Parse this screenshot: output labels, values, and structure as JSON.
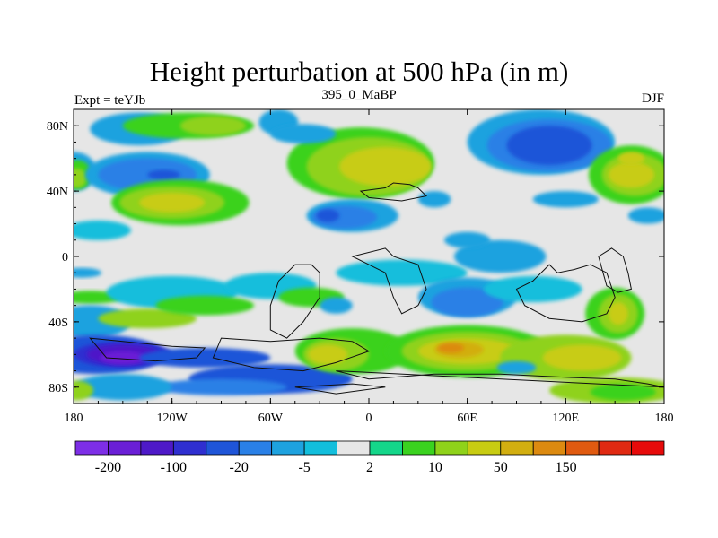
{
  "chart_data": {
    "type": "heatmap",
    "title": "Height perturbation at 500 hPa (in m)",
    "subtitle_left": "Expt = teYJb",
    "subtitle_center": "395_0_MaBP",
    "subtitle_right": "DJF",
    "x_ticks": [
      {
        "value": -180,
        "label": "180"
      },
      {
        "value": -120,
        "label": "120W"
      },
      {
        "value": -60,
        "label": "60W"
      },
      {
        "value": 0,
        "label": "0"
      },
      {
        "value": 60,
        "label": "60E"
      },
      {
        "value": 120,
        "label": "120E"
      },
      {
        "value": 180,
        "label": "180"
      }
    ],
    "y_ticks": [
      {
        "value": 80,
        "label": "80N"
      },
      {
        "value": 40,
        "label": "40N"
      },
      {
        "value": 0,
        "label": "0"
      },
      {
        "value": -40,
        "label": "40S"
      },
      {
        "value": -80,
        "label": "80S"
      }
    ],
    "xlim": [
      -180,
      180
    ],
    "ylim": [
      -90,
      90
    ],
    "colorbar": {
      "colors": [
        "#7d2ee6",
        "#6a1fd6",
        "#4e19c8",
        "#2f2fd0",
        "#1f55d8",
        "#2a80e6",
        "#1ea2df",
        "#12bedc",
        "#e6e6e6",
        "#14d68a",
        "#3ad21f",
        "#8fd21a",
        "#c8cc12",
        "#d2ae10",
        "#dc8a10",
        "#e05a10",
        "#e02a12",
        "#e60a0a"
      ],
      "labels": [
        {
          "boundary": 1,
          "text": "-200"
        },
        {
          "boundary": 3,
          "text": "-100"
        },
        {
          "boundary": 5,
          "text": "-20"
        },
        {
          "boundary": 7,
          "text": "-5"
        },
        {
          "boundary": 9,
          "text": "2"
        },
        {
          "boundary": 11,
          "text": "10"
        },
        {
          "boundary": 13,
          "text": "50"
        },
        {
          "boundary": 15,
          "text": "150"
        }
      ]
    },
    "field_levels": [
      {
        "lon": -170,
        "lat": 85,
        "level": 5
      },
      {
        "lon": -170,
        "lat": 55,
        "level": 11
      },
      {
        "lon": -170,
        "lat": 30,
        "level": 12
      },
      {
        "lon": -175,
        "lat": 5,
        "level": 8
      },
      {
        "lon": -170,
        "lat": -35,
        "level": 6
      },
      {
        "lon": -170,
        "lat": -48,
        "level": 10
      },
      {
        "lon": -150,
        "lat": -60,
        "level": 2
      },
      {
        "lon": -140,
        "lat": -62,
        "level": 1
      },
      {
        "lon": -120,
        "lat": -62,
        "level": 3
      },
      {
        "lon": -60,
        "lat": -70,
        "level": 4
      },
      {
        "lon": -150,
        "lat": 85,
        "level": 6
      },
      {
        "lon": -120,
        "lat": 83,
        "level": 11
      },
      {
        "lon": -90,
        "lat": 80,
        "level": 12
      },
      {
        "lon": -60,
        "lat": 80,
        "level": 6
      },
      {
        "lon": -120,
        "lat": 50,
        "level": 4
      },
      {
        "lon": -120,
        "lat": 50,
        "level": 3
      },
      {
        "lon": -120,
        "lat": 30,
        "level": 12
      },
      {
        "lon": -100,
        "lat": 30,
        "level": 11
      },
      {
        "lon": -20,
        "lat": 25,
        "level": 6
      },
      {
        "lon": -10,
        "lat": 20,
        "level": 5
      },
      {
        "lon": 0,
        "lat": 80,
        "level": 11
      },
      {
        "lon": 20,
        "lat": 60,
        "level": 13
      },
      {
        "lon": 110,
        "lat": 75,
        "level": 4
      },
      {
        "lon": 110,
        "lat": 75,
        "level": 3
      },
      {
        "lon": 160,
        "lat": 55,
        "level": 12
      },
      {
        "lon": 160,
        "lat": 55,
        "level": 13
      },
      {
        "lon": 60,
        "lat": 5,
        "level": 7
      },
      {
        "lon": 50,
        "lat": -25,
        "level": 6
      },
      {
        "lon": 90,
        "lat": -10,
        "level": 7
      },
      {
        "lon": 150,
        "lat": -35,
        "level": 12
      },
      {
        "lon": -100,
        "lat": -25,
        "level": 7
      },
      {
        "lon": -120,
        "lat": -40,
        "level": 12
      },
      {
        "lon": -40,
        "lat": -50,
        "level": 13
      },
      {
        "lon": 60,
        "lat": -60,
        "level": 13
      },
      {
        "lon": 55,
        "lat": -60,
        "level": 14
      },
      {
        "lon": 120,
        "lat": -65,
        "level": 12
      },
      {
        "lon": 150,
        "lat": -80,
        "level": 11
      },
      {
        "lon": -170,
        "lat": -82,
        "level": 13
      }
    ]
  }
}
